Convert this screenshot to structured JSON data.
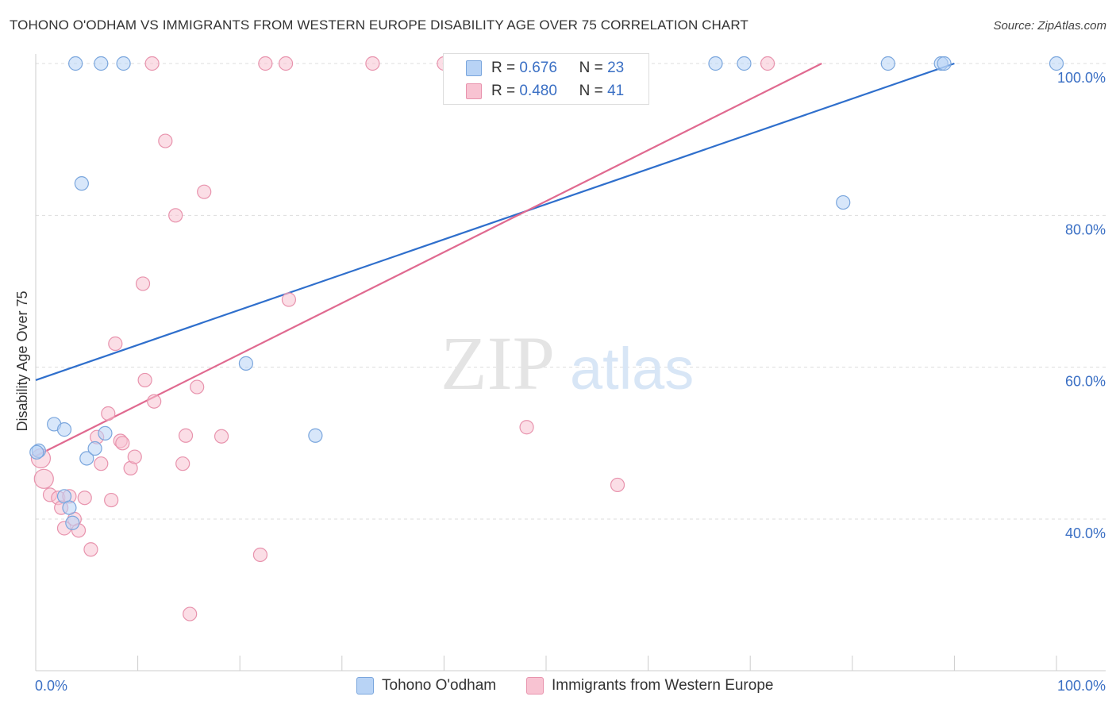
{
  "title": "TOHONO O'ODHAM VS IMMIGRANTS FROM WESTERN EUROPE DISABILITY AGE OVER 75 CORRELATION CHART",
  "source": "Source: ZipAtlas.com",
  "watermark": {
    "zip": "ZIP",
    "atlas": "atlas"
  },
  "colors": {
    "blue_fill": "#b8d3f5",
    "blue_stroke": "#7aa6dd",
    "blue_line": "#2f6fcc",
    "pink_fill": "#f8c3d2",
    "pink_stroke": "#e893ad",
    "pink_line": "#e06a90",
    "axis_text": "#3a6fc4",
    "grid": "#dddddd"
  },
  "legend": {
    "rows": [
      {
        "r_label": "R =",
        "r_value": "0.676",
        "n_label": "N =",
        "n_value": "23"
      },
      {
        "r_label": "R =",
        "r_value": "0.480",
        "n_label": "N =",
        "n_value": "41"
      }
    ]
  },
  "bottom_legend": {
    "series1": "Tohono O'odham",
    "series2": "Immigrants from Western Europe"
  },
  "chart_data": {
    "type": "scatter",
    "title": "TOHONO O'ODHAM VS IMMIGRANTS FROM WESTERN EUROPE DISABILITY AGE OVER 75 CORRELATION CHART",
    "xlabel": "",
    "ylabel": "Disability Age Over 75",
    "xlim": [
      0,
      100
    ],
    "ylim": [
      20,
      102
    ],
    "x_tick_labels": [
      "0.0%",
      "100.0%"
    ],
    "y_ticks": [
      40,
      60,
      80,
      100
    ],
    "y_tick_labels": [
      "40.0%",
      "60.0%",
      "80.0%",
      "100.0%"
    ],
    "grid": true,
    "series": [
      {
        "name": "Tohono O'odham",
        "R": 0.676,
        "N": 23,
        "trend": {
          "x": [
            0,
            90
          ],
          "y": [
            58.3,
            100.0
          ]
        },
        "points": [
          {
            "x": 0.3,
            "y": 49.0
          },
          {
            "x": 1.8,
            "y": 52.5
          },
          {
            "x": 2.8,
            "y": 43.0
          },
          {
            "x": 3.3,
            "y": 41.5
          },
          {
            "x": 2.8,
            "y": 51.8
          },
          {
            "x": 3.6,
            "y": 39.5
          },
          {
            "x": 5.0,
            "y": 48.0
          },
          {
            "x": 5.8,
            "y": 49.3
          },
          {
            "x": 6.8,
            "y": 51.3
          },
          {
            "x": 4.5,
            "y": 84.2
          },
          {
            "x": 3.9,
            "y": 100.0
          },
          {
            "x": 6.4,
            "y": 100.0
          },
          {
            "x": 8.6,
            "y": 100.0
          },
          {
            "x": 20.6,
            "y": 60.5
          },
          {
            "x": 27.4,
            "y": 51.0
          },
          {
            "x": 66.6,
            "y": 100.0
          },
          {
            "x": 69.4,
            "y": 100.0
          },
          {
            "x": 79.1,
            "y": 81.7
          },
          {
            "x": 83.5,
            "y": 100.0
          },
          {
            "x": 88.7,
            "y": 100.0
          },
          {
            "x": 89.0,
            "y": 100.0
          },
          {
            "x": 100.0,
            "y": 100.0
          },
          {
            "x": 0.1,
            "y": 48.8
          }
        ]
      },
      {
        "name": "Immigrants from Western Europe",
        "R": 0.48,
        "N": 41,
        "trend": {
          "x": [
            0,
            77
          ],
          "y": [
            48.3,
            100.0
          ]
        },
        "points": [
          {
            "x": 0.5,
            "y": 48.0
          },
          {
            "x": 0.8,
            "y": 45.3
          },
          {
            "x": 1.4,
            "y": 43.2
          },
          {
            "x": 2.2,
            "y": 42.8
          },
          {
            "x": 2.5,
            "y": 41.5
          },
          {
            "x": 2.8,
            "y": 38.8
          },
          {
            "x": 3.3,
            "y": 43.0
          },
          {
            "x": 3.8,
            "y": 40.0
          },
          {
            "x": 4.2,
            "y": 38.5
          },
          {
            "x": 4.8,
            "y": 42.8
          },
          {
            "x": 5.4,
            "y": 36.0
          },
          {
            "x": 6.0,
            "y": 50.8
          },
          {
            "x": 6.4,
            "y": 47.3
          },
          {
            "x": 7.1,
            "y": 53.9
          },
          {
            "x": 7.4,
            "y": 42.5
          },
          {
            "x": 7.8,
            "y": 63.1
          },
          {
            "x": 8.3,
            "y": 50.3
          },
          {
            "x": 8.5,
            "y": 50.0
          },
          {
            "x": 9.3,
            "y": 46.7
          },
          {
            "x": 9.7,
            "y": 48.2
          },
          {
            "x": 10.5,
            "y": 71.0
          },
          {
            "x": 10.7,
            "y": 58.3
          },
          {
            "x": 11.6,
            "y": 55.5
          },
          {
            "x": 11.4,
            "y": 100.0
          },
          {
            "x": 12.7,
            "y": 89.8
          },
          {
            "x": 13.7,
            "y": 80.0
          },
          {
            "x": 14.4,
            "y": 47.3
          },
          {
            "x": 14.7,
            "y": 51.0
          },
          {
            "x": 15.1,
            "y": 27.5
          },
          {
            "x": 15.8,
            "y": 57.4
          },
          {
            "x": 16.5,
            "y": 83.1
          },
          {
            "x": 18.2,
            "y": 50.9
          },
          {
            "x": 22.0,
            "y": 35.3
          },
          {
            "x": 22.5,
            "y": 100.0
          },
          {
            "x": 24.5,
            "y": 100.0
          },
          {
            "x": 24.8,
            "y": 68.9
          },
          {
            "x": 33.0,
            "y": 100.0
          },
          {
            "x": 40.0,
            "y": 100.0
          },
          {
            "x": 48.1,
            "y": 52.1
          },
          {
            "x": 57.0,
            "y": 44.5
          },
          {
            "x": 71.7,
            "y": 100.0
          }
        ]
      }
    ]
  }
}
